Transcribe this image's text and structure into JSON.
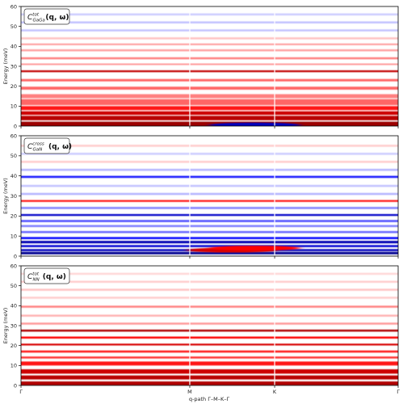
{
  "figure": {
    "xlabel": "q-path Γ–M–K–Γ",
    "x_ticks": [
      "Γ",
      "M",
      "K",
      "Γ"
    ]
  },
  "chart_data": [
    {
      "type": "heatmap",
      "panel_label": "C^{tot}_{GaGa}(q, ω)",
      "label_base": "C",
      "label_sup": "tot",
      "label_sub": "GaGa",
      "label_args": "(q, ω)",
      "ylabel": "Energy (meV)",
      "ylim": [
        0,
        60
      ],
      "y_ticks": [
        0,
        10,
        20,
        30,
        40,
        50,
        60
      ],
      "x_ticks": [
        "Γ",
        "M",
        "K",
        "Γ"
      ],
      "colormap": "seismic (blue negative, white zero, red positive)",
      "bands": [
        {
          "e": 1,
          "w": 2.4,
          "v": 1.0
        },
        {
          "e": 4,
          "w": 2.2,
          "v": 0.85
        },
        {
          "e": 6.5,
          "w": 1.8,
          "v": 0.75
        },
        {
          "e": 9,
          "w": 2.0,
          "v": 0.45
        },
        {
          "e": 12,
          "w": 3.0,
          "v": 0.3
        },
        {
          "e": 15,
          "w": 2.0,
          "v": 0.25
        },
        {
          "e": 19,
          "w": 1.5,
          "v": 0.3
        },
        {
          "e": 23,
          "w": 1.2,
          "v": 0.3
        },
        {
          "e": 27.5,
          "w": 0.9,
          "v": 0.8
        },
        {
          "e": 31,
          "w": 0.8,
          "v": 0.2
        },
        {
          "e": 34,
          "w": 1.0,
          "v": 0.25
        },
        {
          "e": 38,
          "w": 1.0,
          "v": 0.18
        },
        {
          "e": 41,
          "w": 0.8,
          "v": 0.2
        },
        {
          "e": 44,
          "w": 1.0,
          "v": 0.12
        },
        {
          "e": 48,
          "w": 1.0,
          "v": -0.12
        },
        {
          "e": 52,
          "w": 1.0,
          "v": -0.12
        },
        {
          "e": 56,
          "w": 1.0,
          "v": -0.1
        }
      ],
      "features": [
        {
          "e": 0.5,
          "x": 0.62,
          "v": -0.8
        }
      ]
    },
    {
      "type": "heatmap",
      "panel_label": "C^{cross}_{GaN}(q, ω)",
      "label_base": "C",
      "label_sup": "cross",
      "label_sub": "GaN",
      "label_args": "(q, ω)",
      "ylabel": "Energy (meV)",
      "ylim": [
        0,
        60
      ],
      "y_ticks": [
        0,
        10,
        20,
        30,
        40,
        50,
        60
      ],
      "x_ticks": [
        "Γ",
        "M",
        "K",
        "Γ"
      ],
      "colormap": "seismic (blue negative, white zero, red positive)",
      "bands": [
        {
          "e": 1.5,
          "w": 1.2,
          "v": -1.0
        },
        {
          "e": 3,
          "w": 1.0,
          "v": -0.8
        },
        {
          "e": 5,
          "w": 1.0,
          "v": -0.7
        },
        {
          "e": 7,
          "w": 1.2,
          "v": -0.85
        },
        {
          "e": 9,
          "w": 1.0,
          "v": -0.5
        },
        {
          "e": 12,
          "w": 1.0,
          "v": -0.3
        },
        {
          "e": 15,
          "w": 1.0,
          "v": -0.25
        },
        {
          "e": 17.5,
          "w": 1.0,
          "v": -0.35
        },
        {
          "e": 20.5,
          "w": 0.9,
          "v": -0.75
        },
        {
          "e": 24,
          "w": 1.0,
          "v": -0.25
        },
        {
          "e": 27.5,
          "w": 0.9,
          "v": 0.45
        },
        {
          "e": 31,
          "w": 1.0,
          "v": -0.15
        },
        {
          "e": 35,
          "w": 1.0,
          "v": -0.12
        },
        {
          "e": 39.5,
          "w": 1.0,
          "v": -0.45
        },
        {
          "e": 43,
          "w": 1.0,
          "v": -0.15
        },
        {
          "e": 47,
          "w": 1.0,
          "v": 0.1
        },
        {
          "e": 51,
          "w": 1.0,
          "v": -0.1
        },
        {
          "e": 55,
          "w": 1.0,
          "v": 0.1
        }
      ],
      "features": [
        {
          "e": 3,
          "x": 0.56,
          "v": 0.7
        },
        {
          "e": 4,
          "x": 0.62,
          "v": 0.5
        }
      ]
    },
    {
      "type": "heatmap",
      "panel_label": "C^{tot}_{NN}(q, ω)",
      "label_base": "C",
      "label_sup": "tot",
      "label_sub": "NN",
      "label_args": "(q, ω)",
      "ylabel": "Energy (meV)",
      "ylim": [
        0,
        60
      ],
      "y_ticks": [
        0,
        10,
        20,
        30,
        40,
        50,
        60
      ],
      "x_ticks": [
        "Γ",
        "M",
        "K",
        "Γ"
      ],
      "colormap": "seismic (blue negative, white zero, red positive)",
      "bands": [
        {
          "e": 1,
          "w": 2.0,
          "v": 0.9
        },
        {
          "e": 4,
          "w": 2.0,
          "v": 0.85
        },
        {
          "e": 7,
          "w": 2.2,
          "v": 0.75
        },
        {
          "e": 11,
          "w": 2.0,
          "v": 0.45
        },
        {
          "e": 14,
          "w": 1.0,
          "v": 0.4
        },
        {
          "e": 17,
          "w": 1.0,
          "v": 0.45
        },
        {
          "e": 20.5,
          "w": 0.9,
          "v": 0.7
        },
        {
          "e": 24,
          "w": 1.0,
          "v": 0.5
        },
        {
          "e": 27.5,
          "w": 1.0,
          "v": 0.9
        },
        {
          "e": 31,
          "w": 1.0,
          "v": 0.2
        },
        {
          "e": 35,
          "w": 1.0,
          "v": 0.15
        },
        {
          "e": 39.5,
          "w": 1.0,
          "v": 0.25
        },
        {
          "e": 44,
          "w": 1.0,
          "v": 0.1
        },
        {
          "e": 48,
          "w": 1.0,
          "v": 0.12
        },
        {
          "e": 52,
          "w": 1.0,
          "v": 0.1
        },
        {
          "e": 56,
          "w": 1.0,
          "v": 0.08
        }
      ],
      "features": []
    }
  ]
}
